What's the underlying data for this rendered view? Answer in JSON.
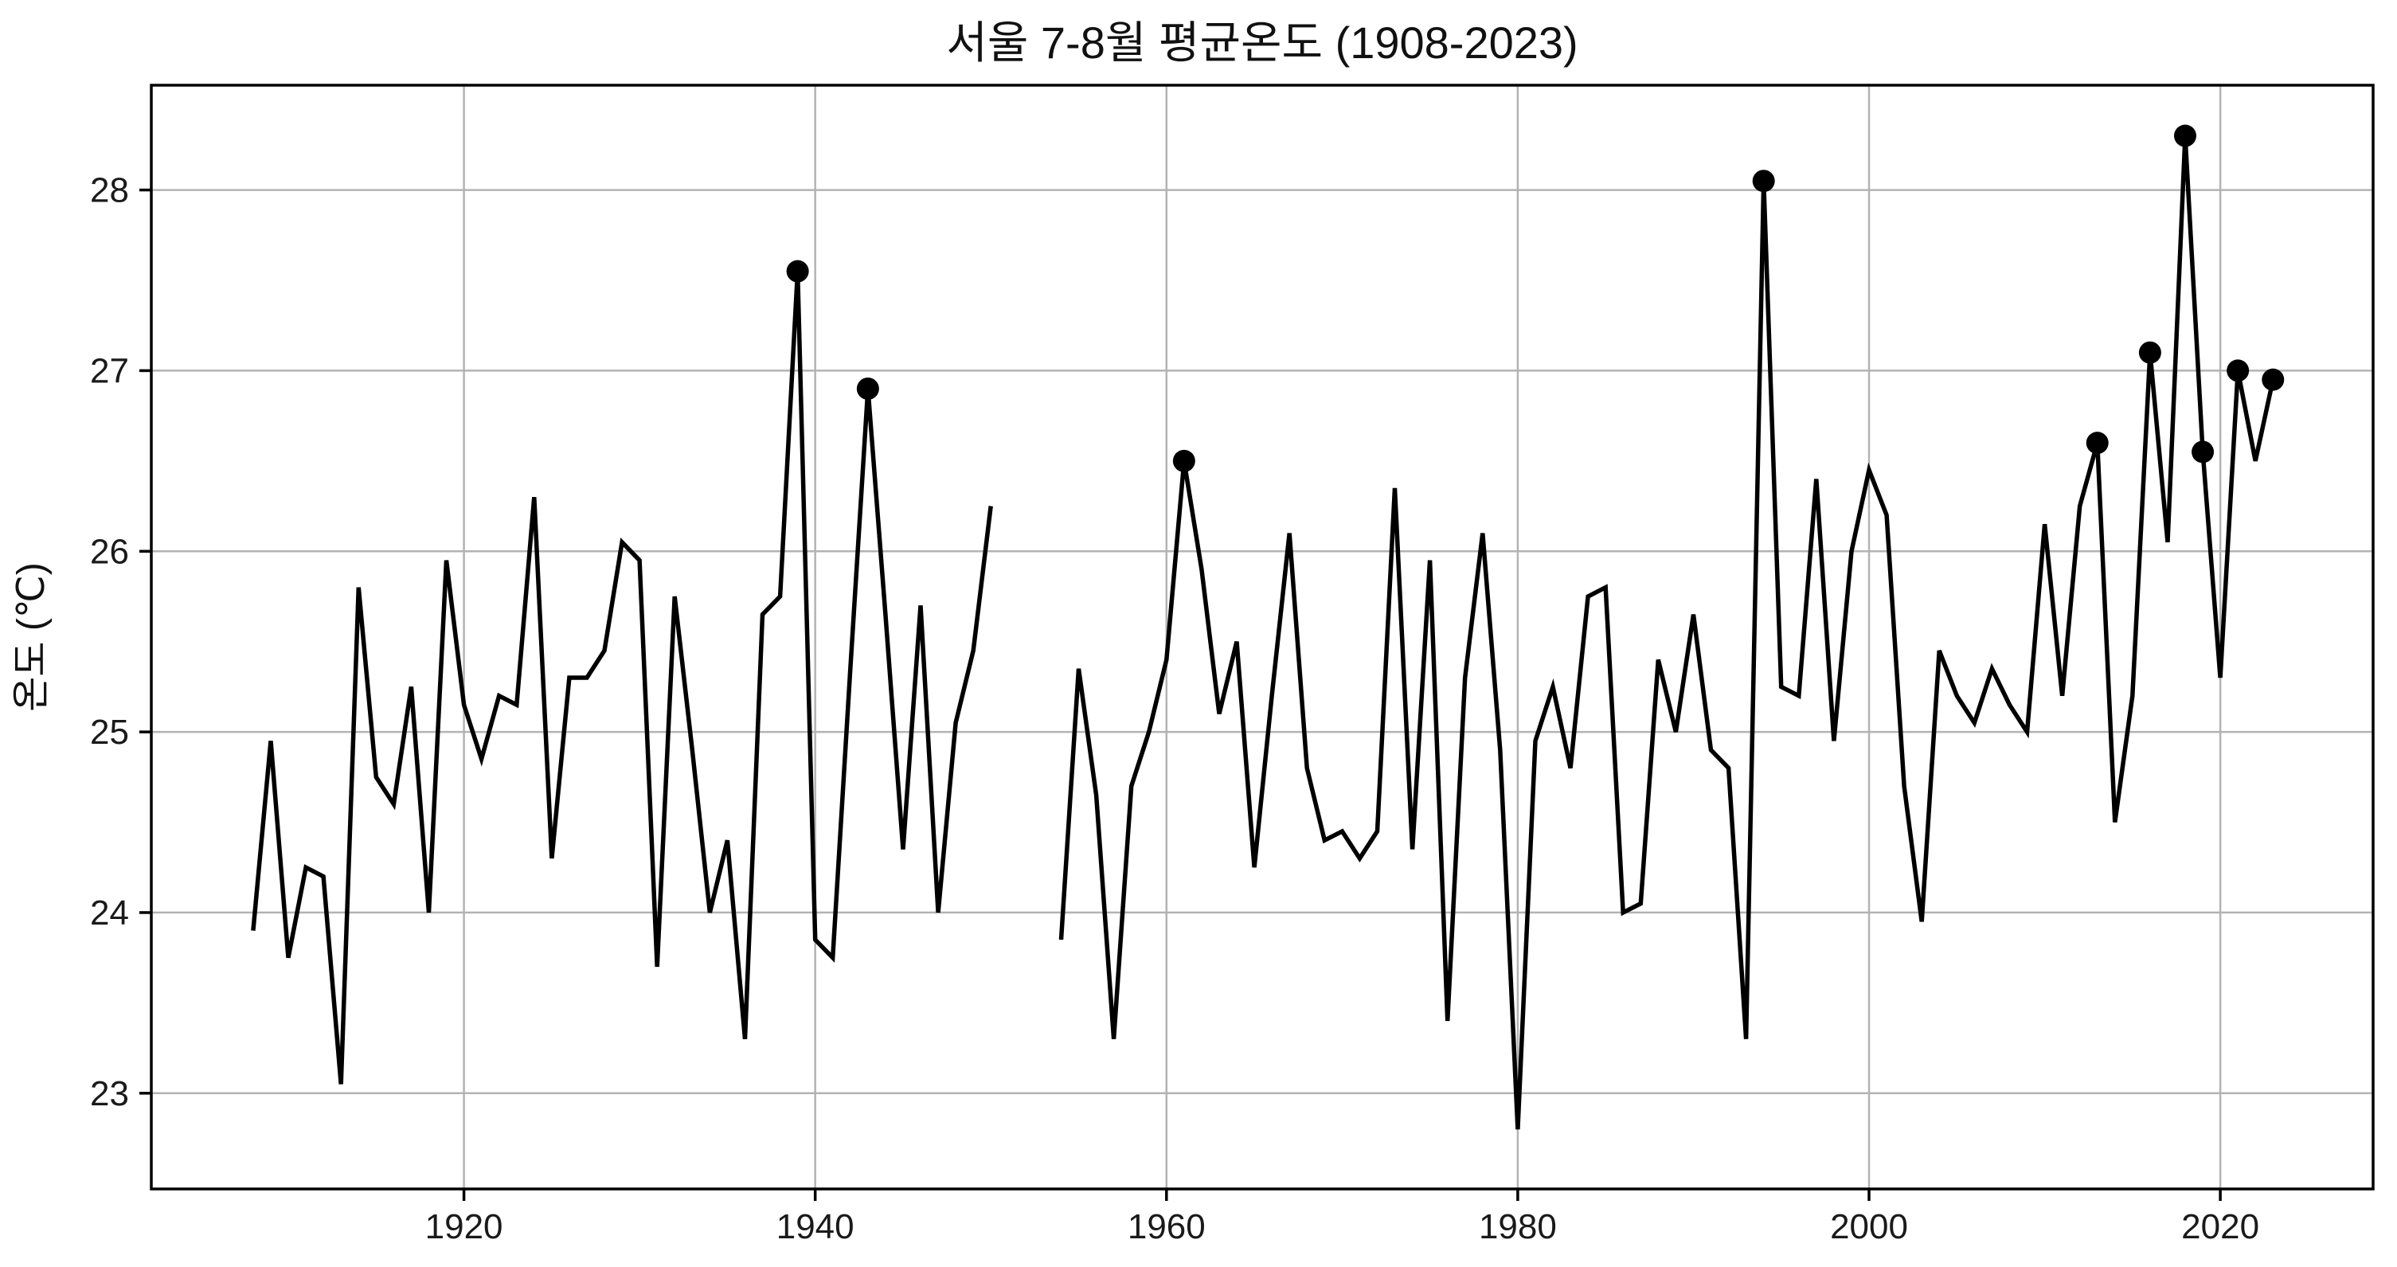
{
  "figure": {
    "background_color": "#ffffff",
    "plot_background_color": "#ffffff"
  },
  "chart_data": {
    "type": "line",
    "title": "서울 7-8월 평균온도 (1908-2023)",
    "xlabel": "",
    "ylabel": "온도 (℃)",
    "legend": "none",
    "grid": true,
    "grid_color": "#b3b3b3",
    "spine_color": "#000000",
    "line_color": "#000000",
    "marker_color": "#000000",
    "x_ticks": [
      1920,
      1940,
      1960,
      1980,
      2000,
      2020
    ],
    "y_ticks": [
      23,
      24,
      25,
      26,
      27,
      28
    ],
    "xlim": [
      1902.2,
      2028.7
    ],
    "ylim": [
      22.47,
      28.58
    ],
    "years": [
      1908,
      1909,
      1910,
      1911,
      1912,
      1913,
      1914,
      1915,
      1916,
      1917,
      1918,
      1919,
      1920,
      1921,
      1922,
      1923,
      1924,
      1925,
      1926,
      1927,
      1928,
      1929,
      1930,
      1931,
      1932,
      1933,
      1934,
      1935,
      1936,
      1937,
      1938,
      1939,
      1940,
      1941,
      1942,
      1943,
      1944,
      1945,
      1946,
      1947,
      1948,
      1949,
      1950,
      1951,
      1952,
      1953,
      1954,
      1955,
      1956,
      1957,
      1958,
      1959,
      1960,
      1961,
      1962,
      1963,
      1964,
      1965,
      1966,
      1967,
      1968,
      1969,
      1970,
      1971,
      1972,
      1973,
      1974,
      1975,
      1976,
      1977,
      1978,
      1979,
      1980,
      1981,
      1982,
      1983,
      1984,
      1985,
      1986,
      1987,
      1988,
      1989,
      1990,
      1991,
      1992,
      1993,
      1994,
      1995,
      1996,
      1997,
      1998,
      1999,
      2000,
      2001,
      2002,
      2003,
      2004,
      2005,
      2006,
      2007,
      2008,
      2009,
      2010,
      2011,
      2012,
      2013,
      2014,
      2015,
      2016,
      2017,
      2018,
      2019,
      2020,
      2021,
      2022,
      2023
    ],
    "values": [
      23.9,
      24.95,
      23.75,
      24.25,
      24.2,
      23.05,
      25.8,
      24.75,
      24.6,
      25.25,
      24.0,
      25.95,
      25.15,
      24.85,
      25.2,
      25.15,
      26.3,
      24.3,
      25.3,
      25.3,
      25.45,
      26.05,
      25.95,
      23.7,
      25.75,
      24.9,
      24.0,
      24.4,
      23.3,
      25.65,
      25.75,
      27.55,
      23.85,
      23.75,
      25.35,
      26.9,
      25.65,
      24.35,
      25.7,
      24.0,
      25.05,
      25.45,
      26.25,
      null,
      null,
      null,
      23.85,
      25.35,
      24.65,
      23.3,
      24.7,
      25.0,
      25.4,
      26.5,
      25.9,
      25.1,
      25.5,
      24.25,
      25.2,
      26.1,
      24.8,
      24.4,
      24.45,
      24.3,
      24.45,
      26.35,
      24.35,
      25.95,
      23.4,
      25.3,
      26.1,
      24.9,
      22.8,
      24.95,
      25.25,
      24.8,
      25.75,
      25.8,
      24.0,
      24.05,
      25.4,
      25.0,
      25.65,
      24.9,
      24.8,
      23.3,
      28.05,
      25.25,
      25.2,
      26.4,
      24.95,
      26.0,
      26.45,
      26.2,
      24.7,
      23.95,
      25.45,
      25.2,
      25.05,
      25.35,
      25.15,
      25.0,
      26.15,
      25.2,
      26.25,
      26.6,
      24.5,
      25.2,
      27.1,
      26.05,
      28.3,
      26.55,
      25.3,
      27.0,
      26.5,
      26.95
    ],
    "data_gap_years": [
      1951,
      1952,
      1953
    ],
    "marked_points": [
      {
        "year": 1939,
        "value": 27.55
      },
      {
        "year": 1943,
        "value": 26.9
      },
      {
        "year": 1961,
        "value": 26.5
      },
      {
        "year": 1994,
        "value": 28.05
      },
      {
        "year": 2013,
        "value": 26.6
      },
      {
        "year": 2016,
        "value": 27.1
      },
      {
        "year": 2018,
        "value": 28.3
      },
      {
        "year": 2019,
        "value": 26.55
      },
      {
        "year": 2021,
        "value": 27.0
      },
      {
        "year": 2023,
        "value": 26.95
      }
    ]
  }
}
